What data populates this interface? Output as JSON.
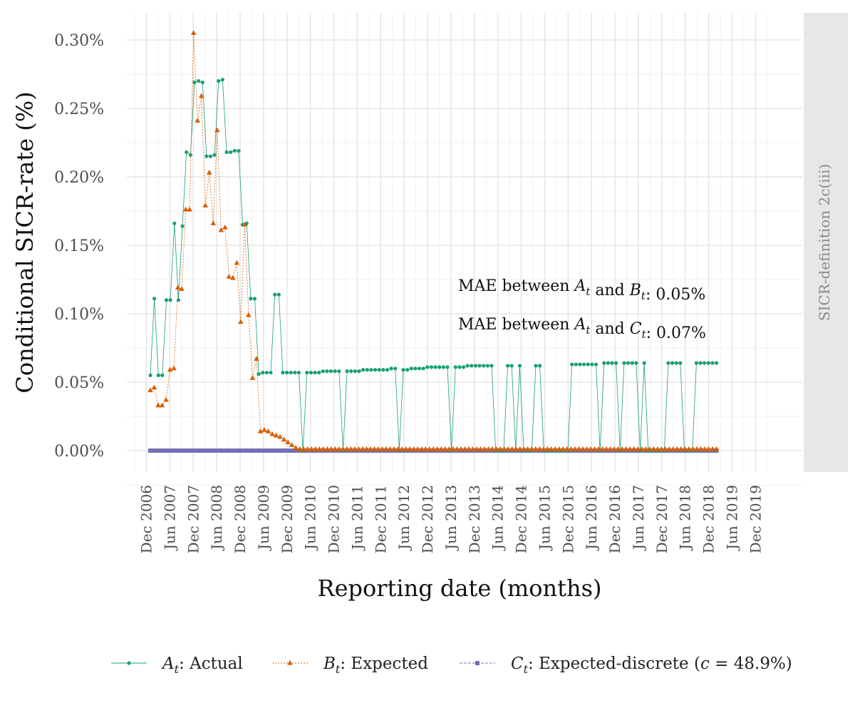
{
  "chart_data": {
    "type": "line",
    "ylabel": "Conditional SICR-rate (%)",
    "xlabel": "Reporting date (months)",
    "facet_strip": "SICR-definition 2c(iii)",
    "ylim": [
      -0.0014,
      0.0032
    ],
    "y_ticks": [
      0,
      0.0005,
      0.001,
      0.0015,
      0.002,
      0.0025,
      0.003
    ],
    "y_tick_labels": [
      "0.00%",
      "0.05%",
      "0.10%",
      "0.15%",
      "0.20%",
      "0.25%",
      "0.30%"
    ],
    "x_tick_labels": [
      "Dec 2006",
      "Jun 2007",
      "Dec 2007",
      "Jun 2008",
      "Dec 2008",
      "Jun 2009",
      "Dec 2009",
      "Jun 2010",
      "Dec 2010",
      "Jun 2011",
      "Dec 2011",
      "Jun 2012",
      "Dec 2012",
      "Jun 2013",
      "Dec 2013",
      "Jun 2014",
      "Dec 2014",
      "Jun 2015",
      "Dec 2015",
      "Jun 2016",
      "Dec 2016",
      "Jun 2017",
      "Dec 2017",
      "Jun 2018",
      "Dec 2018",
      "Jun 2019",
      "Dec 2019"
    ],
    "x_start": "Jan 2007",
    "x_end": "Feb 2019",
    "grid": true,
    "legend_position": "bottom",
    "annotations": [
      {
        "prefix": "MAE between ",
        "a": "A",
        "mid": " and ",
        "b": "B",
        "suffix": ": 0.05%"
      },
      {
        "prefix": "MAE between ",
        "a": "A",
        "mid": " and ",
        "b": "C",
        "suffix": ": 0.07%"
      }
    ],
    "series": [
      {
        "sym": "A",
        "label": ": Actual",
        "color": "#1b9e77",
        "marker": "circle",
        "dash": "",
        "values": [
          0.00055,
          0.00111,
          0.00055,
          0.00055,
          0.0011,
          0.0011,
          0.00166,
          0.0011,
          0.00164,
          0.00218,
          0.00216,
          0.00269,
          0.0027,
          0.00269,
          0.00215,
          0.00215,
          0.00216,
          0.0027,
          0.00271,
          0.00218,
          0.00218,
          0.00219,
          0.00219,
          0.00165,
          0.00166,
          0.00111,
          0.00111,
          0.00056,
          0.00057,
          0.00057,
          0.00057,
          0.00114,
          0.00114,
          0.00057,
          0.00057,
          0.00057,
          0.00057,
          0.00057,
          0,
          0.00057,
          0.00057,
          0.00057,
          0.00057,
          0.00058,
          0.00058,
          0.00058,
          0.00058,
          0.00058,
          0,
          0.00058,
          0.00058,
          0.00058,
          0.00058,
          0.00059,
          0.00059,
          0.00059,
          0.00059,
          0.00059,
          0.00059,
          0.00059,
          0.0006,
          0.0006,
          0,
          0.00059,
          0.00059,
          0.0006,
          0.0006,
          0.0006,
          0.0006,
          0.00061,
          0.00061,
          0.00061,
          0.00061,
          0.00061,
          0.00061,
          0,
          0.00061,
          0.00061,
          0.00061,
          0.00062,
          0.00062,
          0.00062,
          0.00062,
          0.00062,
          0.00062,
          0.00062,
          0,
          0,
          0,
          0.00062,
          0.00062,
          0,
          0.00062,
          0,
          0,
          0,
          0.00062,
          0.00062,
          0,
          0,
          0,
          0,
          0,
          0,
          0,
          0.00063,
          0.00063,
          0.00063,
          0.00063,
          0.00063,
          0.00063,
          0.00063,
          0,
          0.00064,
          0.00064,
          0.00064,
          0.00064,
          0,
          0.00064,
          0.00064,
          0.00064,
          0.00064,
          0,
          0.00064,
          0,
          0,
          0,
          0,
          0,
          0.00064,
          0.00064,
          0.00064,
          0.00064,
          0,
          0,
          0,
          0.00064,
          0.00064,
          0.00064,
          0.00064,
          0.00064,
          0.00064
        ]
      },
      {
        "sym": "B",
        "label": ": Expected",
        "color": "#d95f02",
        "marker": "triangle",
        "dash": "2,2",
        "values": [
          0.00044,
          0.00046,
          0.00033,
          0.00033,
          0.00037,
          0.00059,
          0.0006,
          0.00119,
          0.00118,
          0.00176,
          0.00176,
          0.00305,
          0.00241,
          0.00259,
          0.00179,
          0.00203,
          0.00166,
          0.00234,
          0.00161,
          0.00163,
          0.00127,
          0.00126,
          0.00137,
          0.00094,
          0.00165,
          0.00099,
          0.00053,
          0.00067,
          0.00014,
          0.00015,
          0.00014,
          0.00012,
          0.00011,
          0.0001,
          8e-05,
          6e-05,
          4e-05,
          2e-05,
          1e-05,
          1e-05,
          1e-05,
          1e-05,
          1e-05,
          1e-05,
          1e-05,
          1e-05,
          1e-05,
          1e-05,
          1e-05,
          1e-05,
          1e-05,
          1e-05,
          1e-05,
          1e-05,
          1e-05,
          1e-05,
          1e-05,
          1e-05,
          1e-05,
          1e-05,
          1e-05,
          1e-05,
          1e-05,
          1e-05,
          1e-05,
          1e-05,
          1e-05,
          1e-05,
          1e-05,
          1e-05,
          1e-05,
          1e-05,
          1e-05,
          1e-05,
          1e-05,
          1e-05,
          1e-05,
          1e-05,
          1e-05,
          1e-05,
          1e-05,
          1e-05,
          1e-05,
          1e-05,
          1e-05,
          1e-05,
          1e-05,
          1e-05,
          1e-05,
          1e-05,
          1e-05,
          1e-05,
          1e-05,
          1e-05,
          1e-05,
          1e-05,
          1e-05,
          1e-05,
          1e-05,
          1e-05,
          1e-05,
          1e-05,
          1e-05,
          1e-05,
          1e-05,
          1e-05,
          1e-05,
          1e-05,
          1e-05,
          1e-05,
          1e-05,
          1e-05,
          1e-05,
          1e-05,
          1e-05,
          1e-05,
          1e-05,
          1e-05,
          1e-05,
          1e-05,
          1e-05,
          1e-05,
          1e-05,
          1e-05,
          1e-05,
          1e-05,
          1e-05,
          1e-05,
          1e-05,
          1e-05,
          1e-05,
          1e-05,
          1e-05,
          1e-05,
          1e-05,
          1e-05,
          1e-05,
          1e-05,
          1e-05,
          1e-05,
          1e-05,
          1e-05,
          1e-05,
          1e-05,
          1e-05
        ]
      },
      {
        "sym": "C",
        "label": ": Expected-discrete (",
        "label_c": "c",
        "label_tail": " = 48.9%)",
        "color": "#7570b3",
        "marker": "square",
        "dash": "4,2",
        "values": [
          0,
          0,
          0,
          0,
          0,
          0,
          0,
          0,
          0,
          0,
          0,
          0,
          0,
          0,
          0,
          0,
          0,
          0,
          0,
          0,
          0,
          0,
          0,
          0,
          0,
          0,
          0,
          0,
          0,
          0,
          0,
          0,
          0,
          0,
          0,
          0,
          0,
          0,
          0,
          0,
          0,
          0,
          0,
          0,
          0,
          0,
          0,
          0,
          0,
          0,
          0,
          0,
          0,
          0,
          0,
          0,
          0,
          0,
          0,
          0,
          0,
          0,
          0,
          0,
          0,
          0,
          0,
          0,
          0,
          0,
          0,
          0,
          0,
          0,
          0,
          0,
          0,
          0,
          0,
          0,
          0,
          0,
          0,
          0,
          0,
          0,
          0,
          0,
          0,
          0,
          0,
          0,
          0,
          0,
          0,
          0,
          0,
          0,
          0,
          0,
          0,
          0,
          0,
          0,
          0,
          0,
          0,
          0,
          0,
          0,
          0,
          0,
          0,
          0,
          0,
          0,
          0,
          0,
          0,
          0,
          0,
          0,
          0,
          0,
          0,
          0,
          0,
          0,
          0,
          0,
          0,
          0,
          0,
          0,
          0,
          0,
          0,
          0,
          0,
          0,
          0,
          0,
          0,
          0,
          0,
          0
        ]
      }
    ]
  }
}
